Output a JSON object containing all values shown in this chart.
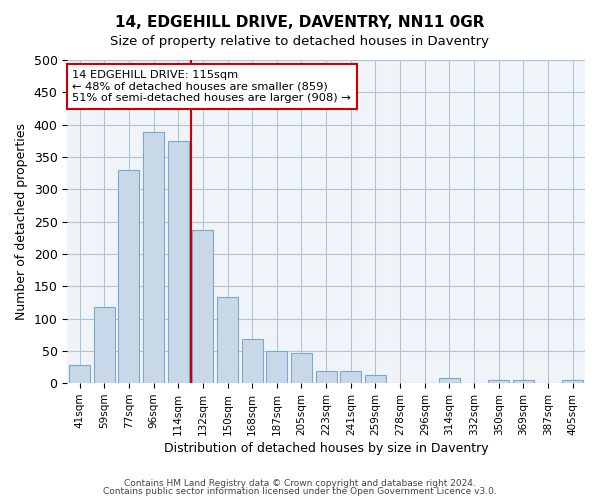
{
  "title": "14, EDGEHILL DRIVE, DAVENTRY, NN11 0GR",
  "subtitle": "Size of property relative to detached houses in Daventry",
  "xlabel": "Distribution of detached houses by size in Daventry",
  "ylabel": "Number of detached properties",
  "bin_labels": [
    "41sqm",
    "59sqm",
    "77sqm",
    "96sqm",
    "114sqm",
    "132sqm",
    "150sqm",
    "168sqm",
    "187sqm",
    "205sqm",
    "223sqm",
    "241sqm",
    "259sqm",
    "278sqm",
    "296sqm",
    "314sqm",
    "332sqm",
    "350sqm",
    "369sqm",
    "387sqm",
    "405sqm"
  ],
  "bar_heights": [
    28,
    118,
    330,
    388,
    375,
    237,
    133,
    68,
    50,
    46,
    19,
    19,
    13,
    0,
    0,
    8,
    0,
    5,
    5,
    0,
    5
  ],
  "bar_color": "#c8d8e8",
  "bar_edge_color": "#7aaac8",
  "vline_x": 4.5,
  "vline_color": "#cc0000",
  "ylim": [
    0,
    500
  ],
  "yticks": [
    0,
    50,
    100,
    150,
    200,
    250,
    300,
    350,
    400,
    450,
    500
  ],
  "annotation_box_text": "14 EDGEHILL DRIVE: 115sqm\n← 48% of detached houses are smaller (859)\n51% of semi-detached houses are larger (908) →",
  "annotation_box_color": "#cc0000",
  "footer_line1": "Contains HM Land Registry data © Crown copyright and database right 2024.",
  "footer_line2": "Contains public sector information licensed under the Open Government Licence v3.0.",
  "bg_color": "#f0f4f8",
  "grid_color": "#b0c4d8"
}
